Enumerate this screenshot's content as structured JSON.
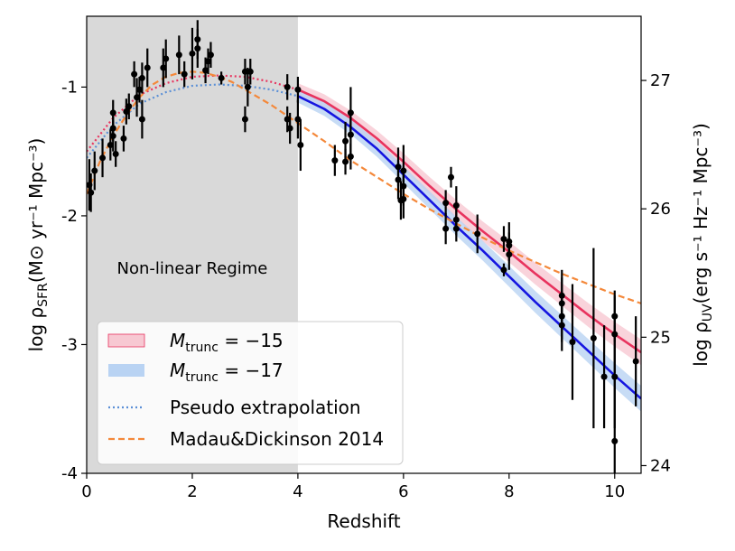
{
  "chart_data": {
    "type": "line",
    "xlabel": "Redshift",
    "ylabel_main": "log ρ",
    "ylabel_sub": "SFR",
    "ylabel_units": "(M⊙ yr⁻¹ Mpc⁻³)",
    "y2label_main": "log ρ",
    "y2label_sub": "UV",
    "y2label_units": "(erg s⁻¹ Hz⁻¹ Mpc⁻³)",
    "xlim": [
      0,
      10.5
    ],
    "ylim": [
      -4,
      -0.45
    ],
    "y2lim": [
      23.94,
      27.5
    ],
    "x_ticks": [
      0,
      2,
      4,
      6,
      8,
      10
    ],
    "y_ticks": [
      -4,
      -3,
      -2,
      -1
    ],
    "y_tick_labels": [
      "-4",
      "-3",
      "-2",
      "-1"
    ],
    "y2_ticks": [
      24,
      25,
      26,
      27
    ],
    "shaded_region": {
      "x_range": [
        0,
        4
      ],
      "label": "Non-linear Regime",
      "color": "#d9d9d9"
    },
    "series": [
      {
        "name": "M_trunc = −15",
        "label_prefix": "M",
        "label_sub": "trunc",
        "label_suffix": " = −15",
        "color": "#e8335e",
        "band_color": "#f7c8d2",
        "style": "solid",
        "band_width": 0.05,
        "x": [
          4.0,
          4.5,
          5.0,
          5.5,
          6.0,
          6.5,
          7.0,
          7.5,
          8.0,
          8.5,
          9.0,
          9.5,
          10.0,
          10.5
        ],
        "y": [
          -1.02,
          -1.11,
          -1.24,
          -1.4,
          -1.58,
          -1.77,
          -1.95,
          -2.12,
          -2.28,
          -2.45,
          -2.61,
          -2.77,
          -2.92,
          -3.06
        ]
      },
      {
        "name": "M_trunc = −17",
        "label_prefix": "M",
        "label_sub": "trunc",
        "label_suffix": " = −17",
        "color": "#1515e0",
        "band_color": "#b9d3f3",
        "style": "solid",
        "band_width": 0.05,
        "x": [
          4.0,
          4.5,
          5.0,
          5.5,
          6.0,
          6.5,
          7.0,
          7.5,
          8.0,
          8.5,
          9.0,
          9.5,
          10.0,
          10.5
        ],
        "y": [
          -1.07,
          -1.17,
          -1.31,
          -1.48,
          -1.68,
          -1.88,
          -2.08,
          -2.27,
          -2.47,
          -2.67,
          -2.86,
          -3.05,
          -3.24,
          -3.42
        ]
      },
      {
        "name": "Pseudo extrapolation",
        "color": "#5a8fd6",
        "style": "dotted",
        "x": [
          0,
          0.5,
          1,
          1.5,
          2,
          2.5,
          3,
          3.5,
          4
        ],
        "y": [
          -1.55,
          -1.3,
          -1.13,
          -1.04,
          -0.99,
          -0.98,
          -0.99,
          -1.02,
          -1.07
        ]
      },
      {
        "name": "Pseudo extrapolation (M_trunc = −15)",
        "color": "#e8335e",
        "style": "dotted",
        "in_legend": false,
        "x": [
          0,
          0.5,
          1,
          1.5,
          2,
          2.5,
          3,
          3.5,
          4
        ],
        "y": [
          -1.5,
          -1.24,
          -1.06,
          -0.97,
          -0.92,
          -0.91,
          -0.92,
          -0.96,
          -1.02
        ]
      },
      {
        "name": "Madau&Dickinson 2014",
        "color": "#f4883a",
        "style": "dashed",
        "x": [
          0,
          0.25,
          0.5,
          0.75,
          1,
          1.25,
          1.5,
          1.75,
          2,
          2.25,
          2.5,
          2.75,
          3,
          3.5,
          4,
          4.5,
          5,
          5.5,
          6,
          6.5,
          7,
          7.5,
          8,
          8.5,
          9,
          9.5,
          10,
          10.5
        ],
        "y": [
          -1.83,
          -1.58,
          -1.38,
          -1.22,
          -1.08,
          -0.98,
          -0.92,
          -0.89,
          -0.88,
          -0.89,
          -0.92,
          -0.96,
          -1.02,
          -1.14,
          -1.28,
          -1.42,
          -1.57,
          -1.7,
          -1.83,
          -1.95,
          -2.06,
          -2.17,
          -2.27,
          -2.36,
          -2.45,
          -2.53,
          -2.61,
          -2.68
        ]
      }
    ],
    "observations": {
      "name": "data points",
      "points": [
        {
          "x": 0.05,
          "y": -1.76,
          "err": 0.2
        },
        {
          "x": 0.08,
          "y": -1.82,
          "err": 0.15
        },
        {
          "x": 0.15,
          "y": -1.65,
          "err": 0.15
        },
        {
          "x": 0.3,
          "y": -1.55,
          "err": 0.15
        },
        {
          "x": 0.45,
          "y": -1.45,
          "err": 0.12
        },
        {
          "x": 0.5,
          "y": -1.38,
          "err": 0.12
        },
        {
          "x": 0.55,
          "y": -1.52,
          "err": 0.1
        },
        {
          "x": 0.5,
          "y": -1.32,
          "err": 0.1
        },
        {
          "x": 0.7,
          "y": -1.4,
          "err": 0.1
        },
        {
          "x": 0.5,
          "y": -1.2,
          "err": 0.1
        },
        {
          "x": 0.75,
          "y": -1.19,
          "err": 0.1
        },
        {
          "x": 0.8,
          "y": -1.15,
          "err": 0.1
        },
        {
          "x": 0.95,
          "y": -1.08,
          "err": 0.15
        },
        {
          "x": 1.0,
          "y": -1.02,
          "err": 0.1
        },
        {
          "x": 1.05,
          "y": -1.25,
          "err": 0.15
        },
        {
          "x": 0.9,
          "y": -0.9,
          "err": 0.1
        },
        {
          "x": 1.05,
          "y": -0.93,
          "err": 0.12
        },
        {
          "x": 1.15,
          "y": -0.85,
          "err": 0.15
        },
        {
          "x": 1.45,
          "y": -0.85,
          "err": 0.15
        },
        {
          "x": 1.5,
          "y": -0.78,
          "err": 0.15
        },
        {
          "x": 1.75,
          "y": -0.75,
          "err": 0.15
        },
        {
          "x": 1.85,
          "y": -0.9,
          "err": 0.1
        },
        {
          "x": 2.0,
          "y": -0.74,
          "err": 0.2
        },
        {
          "x": 2.1,
          "y": -0.7,
          "err": 0.15
        },
        {
          "x": 2.1,
          "y": -0.63,
          "err": 0.15
        },
        {
          "x": 2.25,
          "y": -0.87,
          "err": 0.1
        },
        {
          "x": 2.3,
          "y": -0.8,
          "err": 0.1
        },
        {
          "x": 2.35,
          "y": -0.75,
          "err": 0.1
        },
        {
          "x": 2.55,
          "y": -0.93,
          "err": 0.05
        },
        {
          "x": 3.0,
          "y": -0.88,
          "err": 0.1
        },
        {
          "x": 3.05,
          "y": -1.0,
          "err": 0.15
        },
        {
          "x": 3.0,
          "y": -1.25,
          "err": 0.1
        },
        {
          "x": 3.1,
          "y": -0.88,
          "err": 0.1
        },
        {
          "x": 3.8,
          "y": -1.0,
          "err": 0.1
        },
        {
          "x": 3.8,
          "y": -1.25,
          "err": 0.1
        },
        {
          "x": 3.85,
          "y": -1.32,
          "err": 0.12
        },
        {
          "x": 4.0,
          "y": -1.02,
          "err": 0.1
        },
        {
          "x": 4.0,
          "y": -1.25,
          "err": 0.15
        },
        {
          "x": 4.05,
          "y": -1.45,
          "err": 0.2
        },
        {
          "x": 4.7,
          "y": -1.57,
          "err": 0.12
        },
        {
          "x": 4.9,
          "y": -1.42,
          "err": 0.15
        },
        {
          "x": 4.9,
          "y": -1.58,
          "err": 0.1
        },
        {
          "x": 5.0,
          "y": -1.37,
          "err": 0.15
        },
        {
          "x": 5.0,
          "y": -1.2,
          "err": 0.2
        },
        {
          "x": 5.0,
          "y": -1.54,
          "err": 0.1
        },
        {
          "x": 5.9,
          "y": -1.62,
          "err": 0.15
        },
        {
          "x": 5.9,
          "y": -1.72,
          "err": 0.15
        },
        {
          "x": 5.95,
          "y": -1.88,
          "err": 0.15
        },
        {
          "x": 6.0,
          "y": -1.65,
          "err": 0.2
        },
        {
          "x": 6.0,
          "y": -1.77,
          "err": 0.15
        },
        {
          "x": 6.0,
          "y": -1.87,
          "err": 0.15
        },
        {
          "x": 6.8,
          "y": -2.1,
          "err": 0.12
        },
        {
          "x": 6.8,
          "y": -1.9,
          "err": 0.1
        },
        {
          "x": 6.9,
          "y": -1.7,
          "err": 0.08
        },
        {
          "x": 7.0,
          "y": -1.92,
          "err": 0.15
        },
        {
          "x": 7.0,
          "y": -2.03,
          "err": 0.12
        },
        {
          "x": 7.0,
          "y": -2.1,
          "err": 0.1
        },
        {
          "x": 7.4,
          "y": -2.14,
          "err": 0.15
        },
        {
          "x": 7.9,
          "y": -2.42,
          "err": 0.05
        },
        {
          "x": 7.9,
          "y": -2.18,
          "err": 0.1
        },
        {
          "x": 8.0,
          "y": -2.2,
          "err": 0.15
        },
        {
          "x": 8.0,
          "y": -2.3,
          "err": 0.12
        },
        {
          "x": 8.0,
          "y": -2.23,
          "err": 0.1
        },
        {
          "x": 9.0,
          "y": -2.62,
          "err": 0.2
        },
        {
          "x": 9.0,
          "y": -2.68,
          "err": 0.2
        },
        {
          "x": 9.0,
          "y": -2.78,
          "err": 0.2
        },
        {
          "x": 9.0,
          "y": -2.85,
          "err": 0.2
        },
        {
          "x": 9.2,
          "y": -2.98,
          "err": 0.45
        },
        {
          "x": 9.6,
          "y": -2.95,
          "err": 0.7
        },
        {
          "x": 9.8,
          "y": -3.25,
          "err": 0.4
        },
        {
          "x": 10.0,
          "y": -2.92,
          "err": 0.3
        },
        {
          "x": 10.0,
          "y": -2.78,
          "err": 0.2
        },
        {
          "x": 10.0,
          "y": -3.25,
          "err": 0.4
        },
        {
          "x": 10.0,
          "y": -3.75,
          "err": 0.5
        },
        {
          "x": 10.4,
          "y": -3.13,
          "err": 0.35
        }
      ]
    },
    "legend_position": "bottom-left"
  }
}
